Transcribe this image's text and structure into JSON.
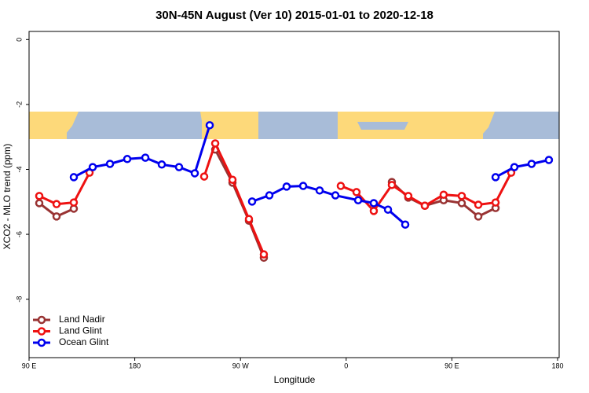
{
  "chart_data": {
    "type": "line",
    "title": "30N-45N August (Ver 10)   2015-01-01 to 2020-12-18",
    "xlabel": "Longitude",
    "ylabel": "XCO2 - MLO trend (ppm)",
    "xlim": [
      90,
      540
    ],
    "ylim": [
      -9.8,
      0.25
    ],
    "xticks": [
      {
        "value": 90,
        "label": "90 E"
      },
      180,
      {
        "value": 270,
        "label": "90 W"
      },
      {
        "value": 360,
        "label": "0"
      },
      {
        "value": 450,
        "label": "90 E"
      },
      {
        "value": 540,
        "label": "180"
      }
    ],
    "yticks": [
      0,
      -2,
      -4,
      -6,
      -8
    ],
    "legend": "lower left",
    "series": [
      {
        "name": "Land Nadir",
        "color": "#993333",
        "x": [
          98.7,
          113.4,
          128.1,
          null,
          248.5,
          263.2,
          277.2,
          289.9,
          null,
          398.9,
          412.9,
          427.0,
          443.0,
          458.4,
          472.5,
          487.2
        ],
        "values": [
          -5.04,
          -5.45,
          -5.21,
          null,
          -3.39,
          -4.41,
          -5.58,
          -6.72,
          null,
          -4.39,
          -4.87,
          -5.12,
          -4.95,
          -5.04,
          -5.45,
          -5.19
        ]
      },
      {
        "name": "Land Glint",
        "color": "#ee1111",
        "x": [
          98.7,
          113.4,
          128.1,
          141.5,
          null,
          239.1,
          248.5,
          263.2,
          277.2,
          289.9,
          null,
          355.4,
          368.8,
          383.5,
          398.9,
          412.9,
          427.0,
          443.0,
          458.4,
          472.5,
          487.2,
          500.5
        ],
        "values": [
          -4.82,
          -5.07,
          -5.02,
          -4.1,
          null,
          -4.22,
          -3.2,
          -4.32,
          -5.53,
          -6.62,
          null,
          -4.51,
          -4.7,
          -5.28,
          -4.48,
          -4.82,
          -5.12,
          -4.78,
          -4.82,
          -5.09,
          -5.02,
          -4.1
        ]
      },
      {
        "name": "Ocean Glint",
        "color": "#0000ee",
        "x": [
          128.1,
          144.2,
          158.9,
          173.6,
          189.0,
          203.0,
          217.7,
          231.1,
          243.8,
          null,
          279.9,
          294.6,
          309.3,
          323.4,
          337.4,
          350.8,
          370.2,
          383.5,
          395.6,
          410.3,
          null,
          487.2,
          503.2,
          517.9,
          532.6
        ],
        "values": [
          -4.24,
          -3.93,
          -3.83,
          -3.68,
          -3.64,
          -3.85,
          -3.93,
          -4.12,
          -2.64,
          null,
          -4.99,
          -4.8,
          -4.53,
          -4.51,
          -4.65,
          -4.8,
          -4.95,
          -5.04,
          -5.24,
          -5.7,
          null,
          -4.24,
          -3.93,
          -3.83,
          -3.71
        ]
      }
    ]
  }
}
